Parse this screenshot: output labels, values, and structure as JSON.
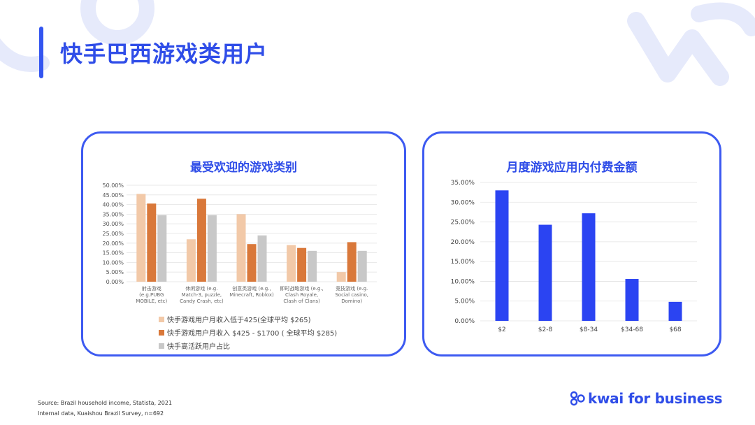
{
  "page_title": "快手巴西游戏类用户",
  "left_panel": {
    "title": "最受欢迎的游戏类别",
    "legend": [
      {
        "label": "快手游戏用户月收入低于425(全球平均 $265)",
        "color": "#f2c9a8"
      },
      {
        "label": "快手游戏用户月收入 $425 - $1700 ( 全球平均 $285)",
        "color": "#d9783a"
      },
      {
        "label": "快手高活跃用户占比",
        "color": "#c8c8c8"
      }
    ]
  },
  "right_panel": {
    "title": "月度游戏应用内付费金额"
  },
  "chart_data": [
    {
      "type": "bar",
      "title": "最受欢迎的游戏类别",
      "categories": [
        [
          "射击游戏",
          "(e.g.PUBG",
          "MOBILE, etc)"
        ],
        [
          "休闲游戏 (e.g.",
          "Match-3, puzzle,",
          "Candy Crash, etc)"
        ],
        [
          "创意类游戏 (e.g.,",
          "Minecraft, Roblox)"
        ],
        [
          "即时战略游戏 (e.g.,",
          "Clash Royale,",
          "Clash of Clans)"
        ],
        [
          "竞技游戏 (e.g.",
          "Social casino,",
          "Domino)"
        ]
      ],
      "series": [
        {
          "name": "快手游戏用户月收入低于425(全球平均 $265)",
          "values": [
            45.5,
            22,
            35,
            19,
            5
          ],
          "color": "#f2c9a8"
        },
        {
          "name": "快手游戏用户月收入 $425 - $1700 ( 全球平均 $285)",
          "values": [
            40.5,
            43,
            19.5,
            17.5,
            20.5
          ],
          "color": "#d9783a"
        },
        {
          "name": "快手高活跃用户占比",
          "values": [
            34.5,
            34.5,
            24,
            16,
            16
          ],
          "color": "#c8c8c8"
        }
      ],
      "yticks": [
        "0.00%",
        "5.00%",
        "10.00%",
        "15.00%",
        "20.00%",
        "25.00%",
        "30.00%",
        "35.00%",
        "40.00%",
        "45.00%",
        "50.00%"
      ],
      "ylim": [
        0,
        50
      ],
      "grid": true
    },
    {
      "type": "bar",
      "title": "月度游戏应用内付费金额",
      "categories": [
        "$2",
        "$2-8",
        "$8-34",
        "$34-68",
        "$68"
      ],
      "values": [
        33,
        24.3,
        27.2,
        10.6,
        4.8
      ],
      "color": "#2b44f2",
      "yticks": [
        "0.00%",
        "5.00%",
        "10.00%",
        "15.00%",
        "20.00%",
        "25.00%",
        "30.00%",
        "35.00%"
      ],
      "ylim": [
        0,
        35
      ],
      "grid": true
    }
  ],
  "footer": {
    "source_line1": "Source: Brazil household income, Statista, 2021",
    "source_line2": "Internal data, Kuaishou Brazil Survey, n=692",
    "brand": "kwai for business"
  }
}
